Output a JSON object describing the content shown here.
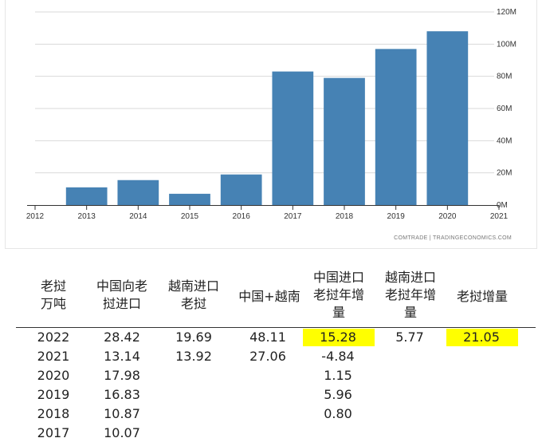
{
  "chart_data": {
    "type": "bar",
    "categories": [
      "2013",
      "2014",
      "2015",
      "2016",
      "2017",
      "2018",
      "2019",
      "2020"
    ],
    "values": [
      11,
      15.5,
      7,
      19,
      83,
      79,
      97,
      108
    ],
    "x_ticks": [
      "2012",
      "2013",
      "2014",
      "2015",
      "2016",
      "2017",
      "2018",
      "2019",
      "2020",
      "2021"
    ],
    "y_ticks": [
      "0M",
      "20M",
      "40M",
      "60M",
      "80M",
      "100M",
      "120M"
    ],
    "ylim": [
      0,
      120
    ],
    "bar_color": "#4682b4",
    "grid": true,
    "source": "COMTRADE | TRADINGECONOMICS.COM"
  },
  "table": {
    "headers": [
      "老挝\n万吨",
      "中国向老\n挝进口",
      "越南进口\n老挝",
      "中国+越南",
      "中国进口\n老挝年增\n量",
      "越南进口\n老挝年增\n量",
      "老挝增量"
    ],
    "rows": [
      [
        "2022",
        "28.42",
        "19.69",
        "48.11",
        "15.28",
        "5.77",
        "21.05"
      ],
      [
        "2021",
        "13.14",
        "13.92",
        "27.06",
        "-4.84",
        "",
        ""
      ],
      [
        "2020",
        "17.98",
        "",
        "",
        "1.15",
        "",
        ""
      ],
      [
        "2019",
        "16.83",
        "",
        "",
        "5.96",
        "",
        ""
      ],
      [
        "2018",
        "10.87",
        "",
        "",
        "0.80",
        "",
        ""
      ],
      [
        "2017",
        "10.07",
        "",
        "",
        "",
        "",
        ""
      ]
    ],
    "highlight_color": "#ffff00"
  }
}
